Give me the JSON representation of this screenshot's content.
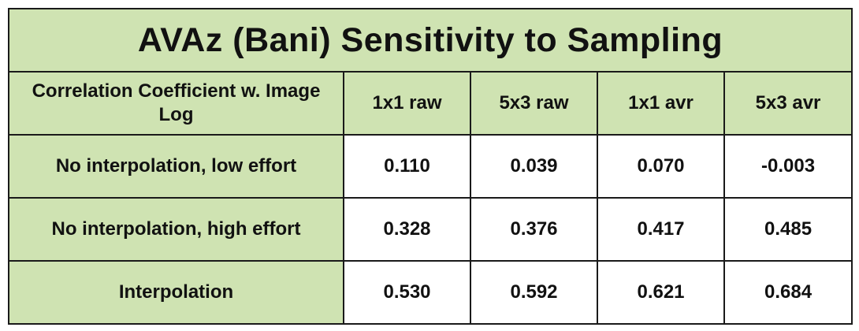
{
  "title": "AVAz (Bani) Sensitivity to Sampling",
  "table": {
    "corner_header": "Correlation Coefficient w. Image Log",
    "columns": [
      "1x1 raw",
      "5x3 raw",
      "1x1 avr",
      "5x3 avr"
    ],
    "rows": [
      {
        "label": "No interpolation, low effort",
        "values": [
          "0.110",
          "0.039",
          "0.070",
          "-0.003"
        ]
      },
      {
        "label": "No interpolation, high effort",
        "values": [
          "0.328",
          "0.376",
          "0.417",
          "0.485"
        ]
      },
      {
        "label": "Interpolation",
        "values": [
          "0.530",
          "0.592",
          "0.621",
          "0.684"
        ]
      }
    ]
  },
  "colors": {
    "header_fill": "#cfe3b2",
    "cell_fill": "#ffffff",
    "border": "#1a1a1a"
  }
}
